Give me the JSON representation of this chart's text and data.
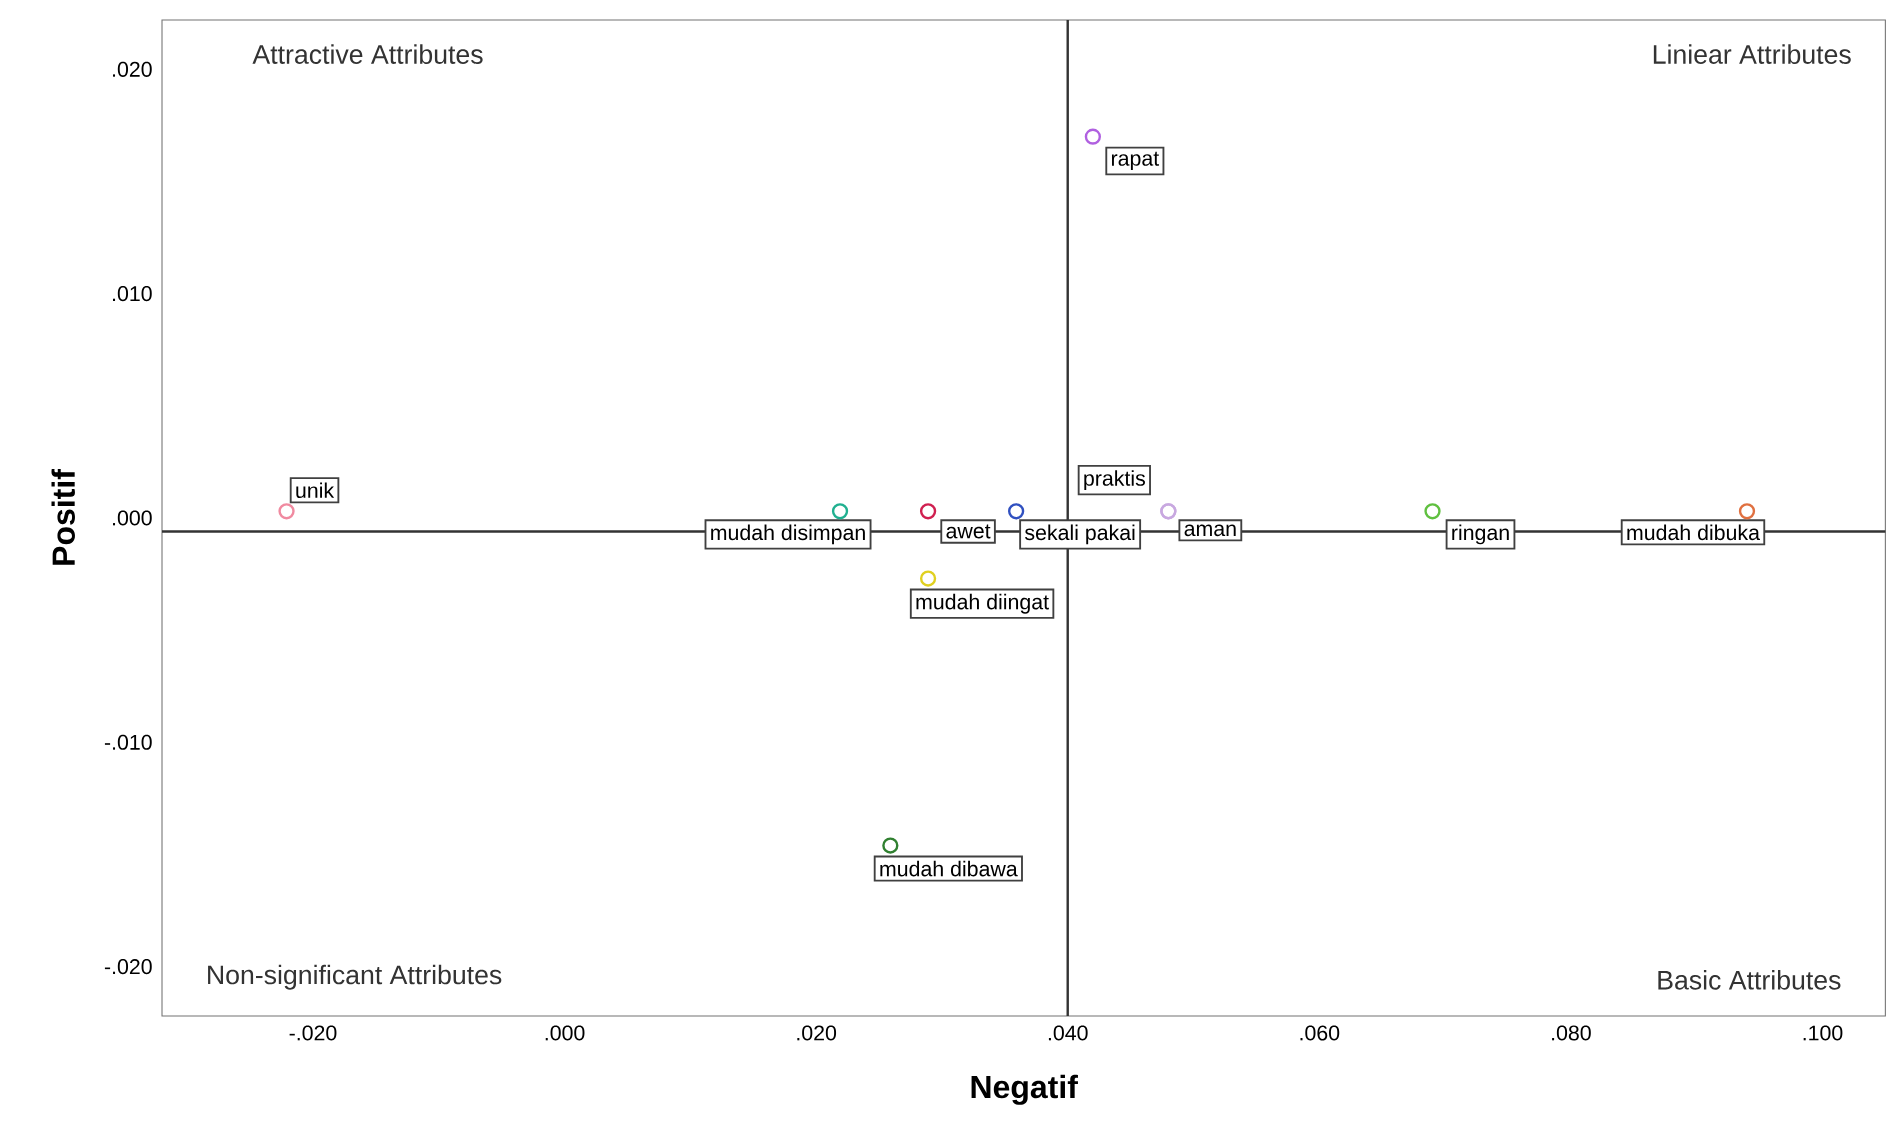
{
  "chart_data": {
    "type": "scatter",
    "xlabel": "Negatif",
    "ylabel": "Positif",
    "xlim": [
      -0.032,
      0.105
    ],
    "ylim": [
      -0.0222,
      0.0222
    ],
    "xticks": [
      {
        "value": -0.02,
        "label": "-.020"
      },
      {
        "value": 0,
        "label": ".000"
      },
      {
        "value": 0.02,
        "label": ".020"
      },
      {
        "value": 0.04,
        "label": ".040"
      },
      {
        "value": 0.06,
        "label": ".060"
      },
      {
        "value": 0.08,
        "label": ".080"
      },
      {
        "value": 0.1,
        "label": ".100"
      }
    ],
    "yticks": [
      {
        "value": -0.02,
        "label": "-.020"
      },
      {
        "value": -0.01,
        "label": "-.010"
      },
      {
        "value": 0,
        "label": ".000"
      },
      {
        "value": 0.01,
        "label": ".010"
      },
      {
        "value": 0.02,
        "label": ".020"
      }
    ],
    "marker": "circle",
    "ref_lines": [
      {
        "axis": "x",
        "value": 0.04,
        "color": "#333333"
      },
      {
        "axis": "y",
        "value": -0.0006,
        "color": "#333333"
      }
    ],
    "annotations": [
      "Attractive Attributes",
      "Liniear Attributes",
      "Non-significant Attributes",
      "Basic Attributes"
    ],
    "series": [
      {
        "name": "unik",
        "color": "#f08aa0",
        "x": [
          -0.0221
        ],
        "values": [
          0.0003
        ]
      },
      {
        "name": "mudah disimpan",
        "color": "#20b090",
        "x": [
          0.0219
        ],
        "values": [
          0.0003
        ]
      },
      {
        "name": "awet",
        "color": "#d02050",
        "x": [
          0.0289
        ],
        "values": [
          0.0003
        ]
      },
      {
        "name": "sekali pakai",
        "color": "#3050c0",
        "x": [
          0.0359
        ],
        "values": [
          0.0003
        ]
      },
      {
        "name": "rapat",
        "color": "#b060e0",
        "x": [
          0.042
        ],
        "values": [
          0.017
        ]
      },
      {
        "name": "praktis",
        "color": "#c8a8e0",
        "x": [
          0.048
        ],
        "values": [
          0.0003
        ]
      },
      {
        "name": "aman",
        "color": "#c8a8e0",
        "x": [
          0.048
        ],
        "values": [
          0.0003
        ]
      },
      {
        "name": "mudah diingat",
        "color": "#e0d020",
        "x": [
          0.0289
        ],
        "values": [
          -0.0027
        ]
      },
      {
        "name": "mudah dibawa",
        "color": "#308030",
        "x": [
          0.0259
        ],
        "values": [
          -0.0146
        ]
      },
      {
        "name": "ringan",
        "color": "#60c040",
        "x": [
          0.069
        ],
        "values": [
          0.0003
        ]
      },
      {
        "name": "mudah dibuka",
        "color": "#e07040",
        "x": [
          0.094
        ],
        "values": [
          0.0003
        ]
      }
    ]
  }
}
